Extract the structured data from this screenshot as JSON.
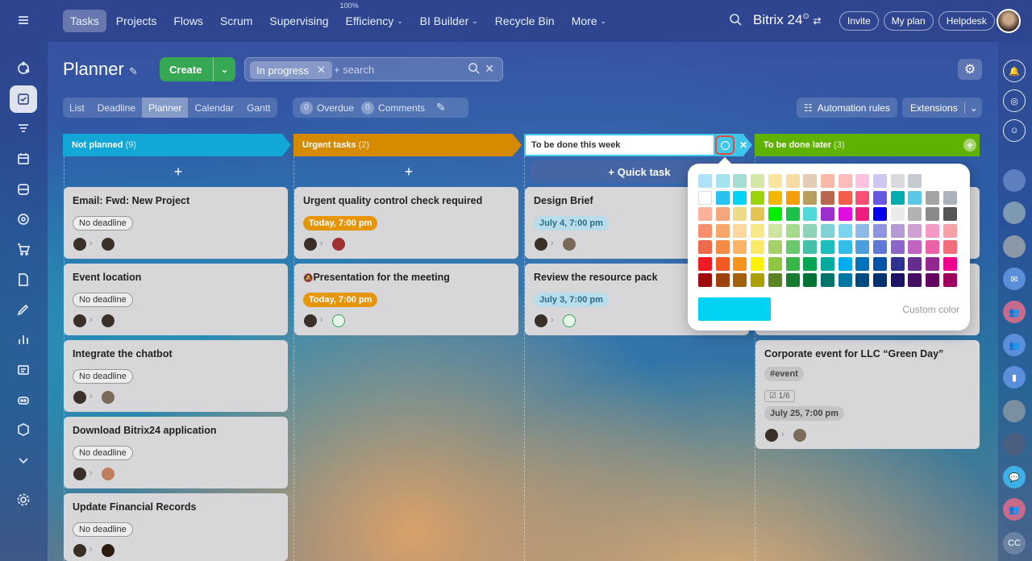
{
  "nav": {
    "tabs": [
      {
        "label": "Tasks"
      },
      {
        "label": "Projects"
      },
      {
        "label": "Flows"
      },
      {
        "label": "Scrum"
      },
      {
        "label": "Supervising"
      },
      {
        "label": "Efficiency",
        "sup": "100%"
      },
      {
        "label": "BI Builder"
      },
      {
        "label": "Recycle Bin"
      },
      {
        "label": "More"
      }
    ],
    "brand": "Bitrix 24",
    "invite": "Invite",
    "myplan": "My plan",
    "helpdesk": "Helpdesk"
  },
  "page": {
    "title": "Planner",
    "create": "Create",
    "filter_chip": "In progress",
    "search_placeholder": "+ search"
  },
  "views": [
    "List",
    "Deadline",
    "Planner",
    "Calendar",
    "Gantt"
  ],
  "counters": {
    "overdue_count": "0",
    "overdue": "Overdue",
    "comments_count": "0",
    "comments": "Comments"
  },
  "actions": {
    "automation": "Automation rules",
    "extensions": "Extensions"
  },
  "columns": [
    {
      "title": "Not planned",
      "count": "(9)",
      "color": "#12a7d6"
    },
    {
      "title": "Urgent tasks",
      "count": "(2)",
      "color": "#d68a00"
    },
    {
      "title": "To be done this week",
      "count": "",
      "color": "#3fc6ea"
    },
    {
      "title": "To be done later",
      "count": "(3)",
      "color": "#5fb200"
    }
  ],
  "quick_task": "Quick task",
  "cards": {
    "c1": {
      "title": "Email: Fwd: New Project",
      "badge": "No deadline"
    },
    "c2": {
      "title": "Event location",
      "badge": "No deadline"
    },
    "c3": {
      "title": "Integrate the chatbot",
      "badge": "No deadline"
    },
    "c4": {
      "title": "Download Bitrix24 application",
      "badge": "No deadline"
    },
    "c5": {
      "title": "Update Financial Records",
      "badge": "No deadline"
    },
    "u1": {
      "title": "Urgent quality control check required",
      "badge": "Today, 7:00 pm"
    },
    "u2": {
      "title": "Presentation for the meeting",
      "badge": "Today, 7:00 pm"
    },
    "w1": {
      "title": "Design Brief",
      "badge": "July 4, 7:00 pm"
    },
    "w2": {
      "title": "Review the resource pack",
      "badge": "July 3, 7:00 pm"
    },
    "l1": {
      "title": "Corporate event for LLC “Green Day”",
      "tag": "#event",
      "checklist": "1/6",
      "badge": "July 25, 7:00 pm"
    }
  },
  "palette": {
    "rows": [
      [
        "#aee3f7",
        "#a5e4ee",
        "#a6ded5",
        "#d5e8a8",
        "#fbe59c",
        "#f8dca3",
        "#e3cdb5",
        "#f8b9a8",
        "#fdbcbc",
        "#fdc2de",
        "#d0c6f2",
        "#d9d9de",
        "#c6cbd1"
      ],
      [
        "#ffffff",
        "#29c1ef",
        "#00d2f3",
        "#9bd40b",
        "#f4b700",
        "#f59e0b",
        "#b89e5e",
        "#b7694f",
        "#f45c4c",
        "#f94f74",
        "#6658e2",
        "#00aeb2",
        "#5cc8e5",
        "#a3a3a3",
        "#acb3bc"
      ],
      [
        "#fdb19b",
        "#f4a67d",
        "#eedb87",
        "#e3c455",
        "#00ee00",
        "#1fc14d",
        "#53d8d8",
        "#9b30cc",
        "#e00ee0",
        "#ee1d81",
        "#0000ee",
        "#ebebeb",
        "#b2b2b2",
        "#8a8a8a",
        "#555555",
        "#000000"
      ],
      [
        "#f58f6e",
        "#f6a769",
        "#ffd8a0",
        "#f9e88a",
        "#cde5a0",
        "#a4d98e",
        "#8fd4b8",
        "#80d1d1",
        "#7cd4f1",
        "#8cb9e6",
        "#8f94e0",
        "#b59ad5",
        "#d09fd3",
        "#f39ac6",
        "#f6a0a8"
      ],
      [
        "#ee6a4c",
        "#f48c47",
        "#ffb366",
        "#fde968",
        "#a6d16a",
        "#6cc86c",
        "#44c0a8",
        "#1fbcbc",
        "#33bde9",
        "#4aa0dc",
        "#5d79d3",
        "#8c65c8",
        "#c064c0",
        "#ec62a7",
        "#f16e7a"
      ],
      [
        "#ed1c24",
        "#f15a22",
        "#f7941d",
        "#fff200",
        "#8dc63f",
        "#39b54a",
        "#00a651",
        "#00a99d",
        "#00aeef",
        "#0072bc",
        "#0054a6",
        "#2e3192",
        "#662d91",
        "#92278f",
        "#ec008c",
        "#ed145b"
      ],
      [
        "#9e0b0f",
        "#a0410d",
        "#a36209",
        "#aba000",
        "#598527",
        "#197b30",
        "#007236",
        "#00746b",
        "#0076a3",
        "#004a80",
        "#003471",
        "#1b1464",
        "#440e62",
        "#630460",
        "#9e005d",
        "#9e0039"
      ]
    ],
    "selected": "#00d2f3",
    "custom": "Custom color"
  }
}
